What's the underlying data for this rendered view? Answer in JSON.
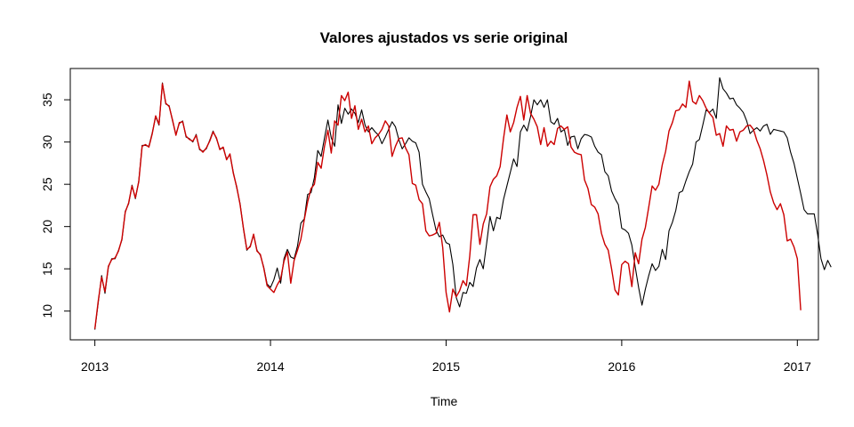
{
  "chart_data": {
    "type": "line",
    "title": "Valores ajustados vs serie original",
    "xlabel": "Time",
    "ylabel": "",
    "xlim": [
      2012.86,
      2017.12
    ],
    "ylim": [
      6.6,
      38.7
    ],
    "x_ticks": [
      2013,
      2014,
      2015,
      2016,
      2017
    ],
    "y_ticks": [
      10,
      15,
      20,
      25,
      30,
      35
    ],
    "grid": false,
    "legend": "none",
    "start": 2013.0,
    "frequency": 52,
    "series": [
      {
        "color": "#000000",
        "values": [
          7.8,
          11.0,
          14.2,
          12.1,
          15.2,
          16.2,
          16.2,
          17.2,
          18.4,
          21.8,
          22.7,
          24.9,
          23.3,
          25.4,
          29.6,
          29.6,
          29.5,
          31.1,
          33.0,
          32.0,
          37.0,
          34.5,
          34.3,
          32.5,
          30.9,
          32.2,
          32.5,
          30.6,
          30.4,
          30.0,
          30.9,
          29.1,
          28.9,
          29.2,
          30.2,
          31.3,
          30.4,
          29.2,
          29.3,
          28.0,
          28.5,
          26.4,
          24.6,
          22.7,
          19.7,
          17.2,
          17.7,
          19.0,
          17.2,
          16.6,
          15.2,
          13.2,
          12.8,
          13.7,
          15.1,
          13.3,
          16.2,
          17.3,
          16.4,
          16.2,
          17.7,
          20.4,
          20.9,
          23.8,
          24.0,
          25.8,
          29.0,
          28.3,
          30.5,
          32.6,
          30.5,
          29.5,
          34.4,
          32.2,
          34.0,
          33.3,
          33.9,
          33.4,
          32.3,
          33.8,
          32.0,
          31.2,
          31.7,
          31.2,
          30.8,
          29.8,
          30.6,
          31.5,
          32.4,
          31.8,
          30.3,
          29.2,
          29.8,
          30.5,
          30.1,
          29.9,
          28.8,
          25.0,
          24.1,
          23.3,
          21.4,
          19.6,
          18.8,
          19.0,
          18.1,
          17.9,
          15.5,
          11.6,
          10.5,
          12.2,
          12.1,
          13.4,
          12.9,
          15.1,
          16.1,
          15.0,
          18.0,
          21.2,
          19.5,
          21.1,
          20.9,
          23.2,
          24.8,
          26.4,
          28.0,
          27.1,
          31.2,
          32.0,
          31.3,
          33.0,
          35.0,
          34.4,
          35.0,
          34.1,
          35.0,
          32.4,
          32.1,
          32.8,
          31.2,
          31.5,
          29.6,
          30.6,
          30.7,
          29.2,
          30.4,
          30.9,
          30.8,
          30.6,
          29.5,
          28.8,
          28.5,
          26.5,
          26.0,
          24.2,
          23.3,
          22.6,
          19.8,
          19.6,
          19.2,
          17.8,
          15.2,
          12.8,
          10.7,
          12.6,
          14.2,
          15.6,
          14.8,
          15.3,
          17.3,
          16.1,
          19.5,
          20.5,
          21.9,
          24.0,
          24.2,
          25.4,
          26.5,
          27.4,
          30.0,
          30.3,
          32.0,
          33.8,
          33.5,
          33.9,
          32.8,
          37.6,
          36.3,
          35.8,
          35.1,
          35.2,
          34.4,
          34.0,
          33.5,
          32.5,
          31.0,
          31.4,
          31.7,
          31.3,
          31.9,
          32.1,
          30.9,
          31.5,
          31.4,
          31.3,
          31.2,
          30.5,
          28.8,
          27.5,
          25.7,
          23.9,
          22.0,
          21.5,
          21.5,
          21.5,
          19.1,
          16.2,
          14.9,
          16.0,
          15.2
        ]
      },
      {
        "color": "#cc0000",
        "values": [
          7.9,
          11.2,
          14.0,
          12.3,
          15.3,
          16.1,
          16.3,
          17.1,
          18.5,
          21.7,
          22.8,
          24.8,
          23.4,
          25.3,
          29.5,
          29.7,
          29.4,
          31.0,
          33.1,
          32.1,
          36.9,
          34.6,
          34.2,
          32.6,
          30.8,
          32.3,
          32.4,
          30.7,
          30.3,
          30.1,
          30.8,
          29.2,
          28.8,
          29.3,
          30.1,
          31.2,
          30.5,
          29.1,
          29.4,
          27.9,
          28.6,
          26.3,
          24.7,
          22.6,
          19.8,
          17.3,
          17.6,
          19.1,
          17.1,
          16.7,
          15.1,
          13.0,
          12.6,
          12.2,
          13.1,
          13.8,
          15.9,
          17.0,
          13.3,
          16.0,
          17.2,
          18.5,
          20.8,
          22.9,
          24.5,
          25.0,
          27.6,
          26.9,
          29.5,
          31.4,
          28.7,
          32.5,
          32.0,
          35.5,
          34.9,
          35.9,
          32.8,
          34.3,
          31.5,
          32.7,
          31.2,
          31.9,
          29.8,
          30.5,
          30.9,
          31.5,
          32.5,
          31.9,
          28.3,
          29.5,
          30.4,
          30.5,
          29.3,
          28.5,
          25.1,
          24.9,
          23.2,
          22.7,
          19.5,
          18.9,
          19.0,
          19.2,
          20.5,
          17.5,
          12.2,
          9.9,
          12.6,
          11.7,
          12.4,
          13.6,
          13.0,
          16.5,
          21.4,
          21.4,
          17.9,
          20.3,
          21.5,
          24.7,
          25.6,
          26.0,
          27.1,
          30.4,
          33.2,
          31.2,
          32.3,
          34.1,
          35.4,
          32.6,
          35.5,
          33.4,
          32.7,
          31.8,
          29.7,
          31.7,
          29.5,
          30.1,
          29.7,
          31.6,
          31.9,
          31.5,
          31.8,
          29.4,
          28.8,
          28.6,
          28.5,
          25.5,
          24.5,
          22.6,
          22.3,
          21.5,
          19.2,
          17.9,
          17.2,
          15.0,
          12.5,
          11.9,
          15.5,
          15.9,
          15.6,
          12.9,
          16.9,
          15.6,
          18.5,
          19.9,
          22.3,
          24.8,
          24.3,
          25.0,
          27.3,
          28.9,
          31.3,
          32.3,
          33.7,
          33.8,
          34.5,
          34.1,
          37.2,
          34.8,
          34.5,
          35.5,
          34.9,
          34.0,
          33.4,
          32.9,
          30.8,
          31.0,
          29.5,
          31.9,
          31.4,
          31.5,
          30.1,
          31.2,
          31.4,
          31.9,
          32.0,
          31.5,
          30.2,
          29.2,
          27.8,
          26.1,
          24.1,
          22.8,
          22.0,
          22.7,
          21.4,
          18.3,
          18.5,
          17.6,
          16.2,
          10.1
        ]
      }
    ]
  }
}
